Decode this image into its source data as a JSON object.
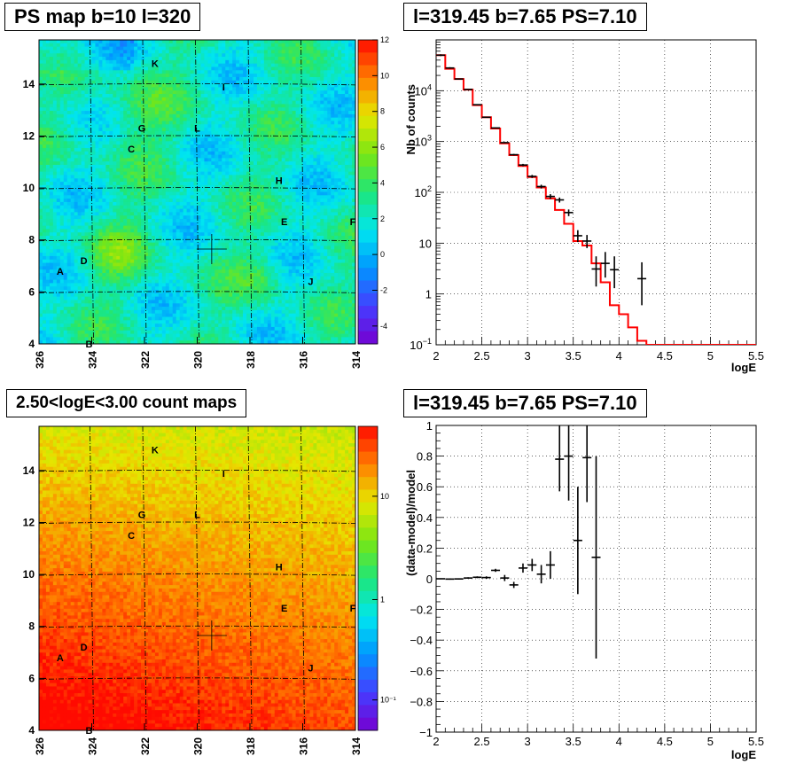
{
  "panels": {
    "ps_map": {
      "title": "PS map b=10 l=320",
      "x_ticks": [
        "326",
        "324",
        "322",
        "320",
        "318",
        "316",
        "314"
      ],
      "y_ticks": [
        "4",
        "6",
        "8",
        "10",
        "12",
        "14"
      ],
      "colorbar_ticks": [
        "12",
        "10",
        "8",
        "6",
        "4",
        "2",
        "0",
        "-2",
        "-4"
      ],
      "colorbar_range": [
        -5,
        12
      ],
      "sources": [
        {
          "label": "K",
          "l": 321.6,
          "b": 14.8
        },
        {
          "label": "I",
          "l": 319.0,
          "b": 13.9
        },
        {
          "label": "G",
          "l": 322.1,
          "b": 12.3
        },
        {
          "label": "L",
          "l": 320.0,
          "b": 12.3
        },
        {
          "label": "C",
          "l": 322.5,
          "b": 11.5
        },
        {
          "label": "H",
          "l": 316.9,
          "b": 10.3
        },
        {
          "label": "E",
          "l": 316.7,
          "b": 8.7
        },
        {
          "label": "F",
          "l": 314.1,
          "b": 8.7
        },
        {
          "label": "D",
          "l": 324.3,
          "b": 7.2
        },
        {
          "label": "A",
          "l": 325.2,
          "b": 6.8
        },
        {
          "label": "J",
          "l": 315.7,
          "b": 6.4
        },
        {
          "label": "B",
          "l": 324.1,
          "b": 4.0
        }
      ],
      "marker": {
        "l": 319.45,
        "b": 7.65
      }
    },
    "count_map": {
      "title": "2.50<logE<3.00 count maps",
      "x_ticks": [
        "326",
        "324",
        "322",
        "320",
        "318",
        "316",
        "314"
      ],
      "y_ticks": [
        "4",
        "6",
        "8",
        "10",
        "12",
        "14"
      ],
      "colorbar_ticks": [
        "10",
        "1",
        "10⁻¹"
      ],
      "colorbar_scale": "log"
    },
    "spectrum": {
      "title": "l=319.45 b=7.65 PS=7.10",
      "xlabel": "logE",
      "ylabel": "Nb of counts"
    },
    "residual": {
      "title": "l=319.45 b=7.65 PS=7.10",
      "xlabel": "logE",
      "ylabel": "(data-model)/model"
    }
  },
  "chart_data": [
    {
      "type": "heatmap",
      "title": "PS map b=10 l=320",
      "x_range": [
        326,
        314
      ],
      "y_range": [
        4,
        15.7
      ],
      "z_range": [
        -5,
        12
      ],
      "x_ticks": [
        326,
        324,
        322,
        320,
        318,
        316,
        314
      ],
      "y_ticks": [
        4,
        6,
        8,
        10,
        12,
        14
      ]
    },
    {
      "type": "heatmap",
      "title": "2.50<logE<3.00 count maps",
      "x_range": [
        326,
        314
      ],
      "y_range": [
        4,
        15.7
      ],
      "z_scale": "log",
      "x_ticks": [
        326,
        324,
        322,
        320,
        318,
        316,
        314
      ],
      "y_ticks": [
        4,
        6,
        8,
        10,
        12,
        14
      ]
    },
    {
      "type": "line",
      "title": "l=319.45 b=7.65 PS=7.10",
      "xlabel": "logE",
      "ylabel": "Nb of counts",
      "xlim": [
        2,
        5.5
      ],
      "ylim": [
        0.1,
        100000
      ],
      "yscale": "log",
      "x_ticks": [
        "2",
        "2.5",
        "3",
        "3.5",
        "4",
        "4.5",
        "5",
        "5.5"
      ],
      "y_ticks": [
        {
          "v": 0.1,
          "base": "10",
          "exp": "−1"
        },
        {
          "v": 1,
          "label": "1"
        },
        {
          "v": 10,
          "label": "10"
        },
        {
          "v": 100,
          "base": "10",
          "exp": "2"
        },
        {
          "v": 1000,
          "base": "10",
          "exp": "3"
        },
        {
          "v": 10000,
          "base": "10",
          "exp": "4"
        }
      ],
      "grid": true,
      "series": [
        {
          "kind": "model-step",
          "color": "#ff0000",
          "bins": [
            [
              2.0,
              2.1,
              50000
            ],
            [
              2.1,
              2.2,
              27000
            ],
            [
              2.2,
              2.3,
              17000
            ],
            [
              2.3,
              2.4,
              10500
            ],
            [
              2.4,
              2.5,
              5200
            ],
            [
              2.5,
              2.6,
              3000
            ],
            [
              2.6,
              2.7,
              1800
            ],
            [
              2.7,
              2.8,
              920
            ],
            [
              2.8,
              2.9,
              540
            ],
            [
              2.9,
              3.0,
              330
            ],
            [
              3.0,
              3.1,
              200
            ],
            [
              3.1,
              3.2,
              125
            ],
            [
              3.2,
              3.3,
              76
            ],
            [
              3.3,
              3.4,
              45
            ],
            [
              3.4,
              3.5,
              24
            ],
            [
              3.5,
              3.6,
              11
            ],
            [
              3.6,
              3.7,
              9
            ],
            [
              3.7,
              3.8,
              4
            ],
            [
              3.8,
              3.9,
              1.7
            ],
            [
              3.9,
              4.0,
              0.6
            ],
            [
              4.0,
              4.1,
              0.4
            ],
            [
              4.1,
              4.2,
              0.22
            ],
            [
              4.2,
              4.3,
              0.12
            ],
            [
              4.3,
              5.5,
              0.1
            ]
          ]
        },
        {
          "kind": "data-points",
          "color": "#000000",
          "points": [
            [
              2.05,
              50000,
              48000,
              52000
            ],
            [
              2.15,
              28000,
              27000,
              29000
            ],
            [
              2.25,
              17000,
              16600,
              17400
            ],
            [
              2.35,
              10600,
              10400,
              10800
            ],
            [
              2.45,
              5300,
              5200,
              5400
            ],
            [
              2.55,
              3000,
              2950,
              3050
            ],
            [
              2.65,
              1850,
              1810,
              1890
            ],
            [
              2.75,
              950,
              925,
              975
            ],
            [
              2.85,
              550,
              530,
              570
            ],
            [
              2.95,
              345,
              327,
              363
            ],
            [
              3.05,
              206,
              192,
              220
            ],
            [
              3.15,
              130,
              119,
              141
            ],
            [
              3.25,
              83,
              74,
              92
            ],
            [
              3.35,
              71,
              63,
              79
            ],
            [
              3.45,
              40,
              34,
              46
            ],
            [
              3.55,
              14,
              10.5,
              18
            ],
            [
              3.65,
              11,
              8,
              14.5
            ],
            [
              3.75,
              3.1,
              1.4,
              5.5
            ],
            [
              3.85,
              4.0,
              2.1,
              6.7
            ],
            [
              3.95,
              3.0,
              1.3,
              5.5
            ],
            [
              4.25,
              2.0,
              0.6,
              4.2
            ]
          ]
        }
      ]
    },
    {
      "type": "scatter",
      "title": "l=319.45 b=7.65 PS=7.10",
      "xlabel": "logE",
      "ylabel": "(data-model)/model",
      "xlim": [
        2,
        5.5
      ],
      "ylim": [
        -1,
        1
      ],
      "x_ticks": [
        "2",
        "2.5",
        "3",
        "3.5",
        "4",
        "4.5",
        "5",
        "5.5"
      ],
      "y_ticks": [
        "−1",
        "−0.8",
        "−0.6",
        "−0.4",
        "−0.2",
        "0",
        "0.2",
        "0.4",
        "0.6",
        "0.8",
        "1"
      ],
      "grid": true,
      "series": [
        {
          "kind": "residual-points",
          "color": "#000000",
          "points": [
            [
              2.05,
              0.0,
              -0.003,
              0.003
            ],
            [
              2.15,
              -0.002,
              -0.006,
              0.002
            ],
            [
              2.25,
              -0.001,
              -0.005,
              0.003
            ],
            [
              2.35,
              0.005,
              0.0,
              0.01
            ],
            [
              2.45,
              0.01,
              0.004,
              0.016
            ],
            [
              2.55,
              0.008,
              0.0,
              0.016
            ],
            [
              2.65,
              0.055,
              0.045,
              0.065
            ],
            [
              2.75,
              0.005,
              -0.015,
              0.025
            ],
            [
              2.85,
              -0.04,
              -0.06,
              -0.02
            ],
            [
              2.95,
              0.07,
              0.04,
              0.1
            ],
            [
              3.05,
              0.09,
              0.05,
              0.13
            ],
            [
              3.15,
              0.03,
              -0.03,
              0.09
            ],
            [
              3.25,
              0.09,
              0.0,
              0.18
            ],
            [
              3.35,
              0.78,
              0.57,
              1.0
            ],
            [
              3.45,
              0.8,
              0.51,
              1.0
            ],
            [
              3.55,
              0.25,
              -0.1,
              0.6
            ],
            [
              3.65,
              0.79,
              0.5,
              1.0
            ],
            [
              3.75,
              0.14,
              -0.52,
              0.8
            ]
          ]
        }
      ]
    }
  ]
}
